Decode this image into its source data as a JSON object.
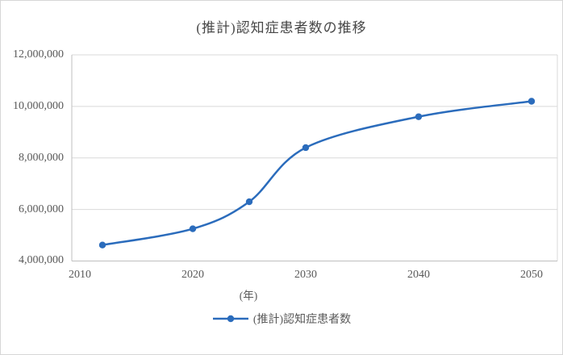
{
  "chart": {
    "title": "(推計)認知症患者数の推移",
    "x_axis_label": "(年)",
    "legend_label": "(推計)認知症患者数",
    "y_ticks": [
      "4,000,000",
      "6,000,000",
      "8,000,000",
      "10,000,000",
      "12,000,000"
    ],
    "x_ticks": [
      "2010",
      "2020",
      "2030",
      "2040",
      "2050"
    ]
  },
  "chart_data": {
    "type": "line",
    "title": "(推計)認知症患者数の推移",
    "xlabel": "(年)",
    "ylabel": "",
    "x": [
      2012,
      2020,
      2025,
      2030,
      2040,
      2050
    ],
    "series": [
      {
        "name": "(推計)認知症患者数",
        "values": [
          4620000,
          5250000,
          6300000,
          8400000,
          9600000,
          10200000
        ]
      }
    ],
    "xlim": [
      2010,
      2050
    ],
    "x_tick_values": [
      2010,
      2020,
      2030,
      2040,
      2050
    ],
    "ylim": [
      4000000,
      12000000
    ],
    "y_tick_step": 2000000,
    "grid": true,
    "smooth": true,
    "marker": "circle",
    "legend_position": "bottom",
    "colors": {
      "series": "#2b6cbc",
      "gridline": "#d9d9d9",
      "axis": "#bfbfbf",
      "text": "#595959"
    }
  }
}
